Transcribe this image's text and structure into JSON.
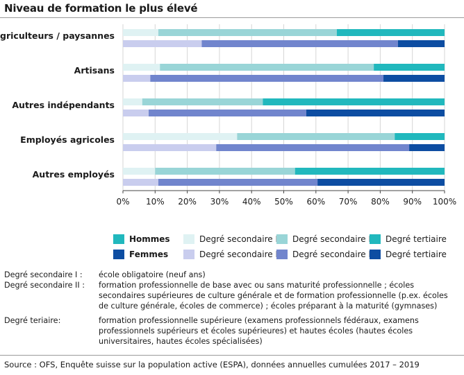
{
  "header": {
    "title": "Niveau de formation le plus élevé"
  },
  "chart_data": {
    "type": "bar",
    "orientation": "horizontal",
    "stacked": true,
    "percent_scale": true,
    "categories": [
      "Agriculteurs / paysannes",
      "Artisans",
      "Autres indépendants",
      "Employés agricoles",
      "Autres employés"
    ],
    "groups": [
      {
        "name": "Hommes",
        "series": [
          {
            "name": "Degré secondaire I",
            "values": [
              11,
              11.5,
              6,
              35.5,
              10
            ]
          },
          {
            "name": "Degré secondaire II",
            "values": [
              55.5,
              66.5,
              37.5,
              49,
              43.5
            ]
          },
          {
            "name": "Degré tertiaire",
            "values": [
              33.5,
              22,
              56.5,
              15.5,
              46.5
            ]
          }
        ]
      },
      {
        "name": "Femmes",
        "series": [
          {
            "name": "Degré secondaire I",
            "values": [
              24.5,
              8.5,
              8,
              29,
              11
            ]
          },
          {
            "name": "Degré secondaire II",
            "values": [
              61,
              72.5,
              49,
              60,
              49.5
            ]
          },
          {
            "name": "Degré tertiaire",
            "values": [
              14.5,
              19,
              43,
              11,
              39.5
            ]
          }
        ]
      }
    ],
    "colors": {
      "Hommes": [
        "#dff2f3",
        "#99d5d7",
        "#21b8bd"
      ],
      "Femmes": [
        "#c9cdee",
        "#7185cd",
        "#0d4da2"
      ]
    },
    "xlim": [
      0,
      100
    ],
    "xticks": [
      "0%",
      "10%",
      "20%",
      "30%",
      "40%",
      "50%",
      "60%",
      "70%",
      "80%",
      "90%",
      "100%"
    ],
    "grid": true,
    "legend": {
      "position": "bottom",
      "group_swatch_colors": {
        "Hommes": "#21b8bd",
        "Femmes": "#0d4da2"
      }
    }
  },
  "notes": [
    {
      "term": "Degré secondaire I :",
      "definition": "école obligatoire (neuf ans)"
    },
    {
      "term": "Degré secondaire II :",
      "definition": "formation professionnelle de base avec ou sans maturité professionnelle ; écoles secondaires supérieures de culture générale et de formation professionnelle (p.ex. écoles de culture générale, écoles de commerce) ; écoles préparant à la maturité (gymnases)"
    },
    {
      "term": "Degré teriaire:",
      "definition": "formation professionnelle supérieure (examens professionnels fédéraux, examens professionnels supérieurs et écoles supérieures) et hautes écoles (hautes écoles universitaires, hautes écoles spécialisées)"
    }
  ],
  "source": "Source : OFS, Enquête suisse sur la population active (ESPA), données annuelles cumulées 2017 – 2019"
}
